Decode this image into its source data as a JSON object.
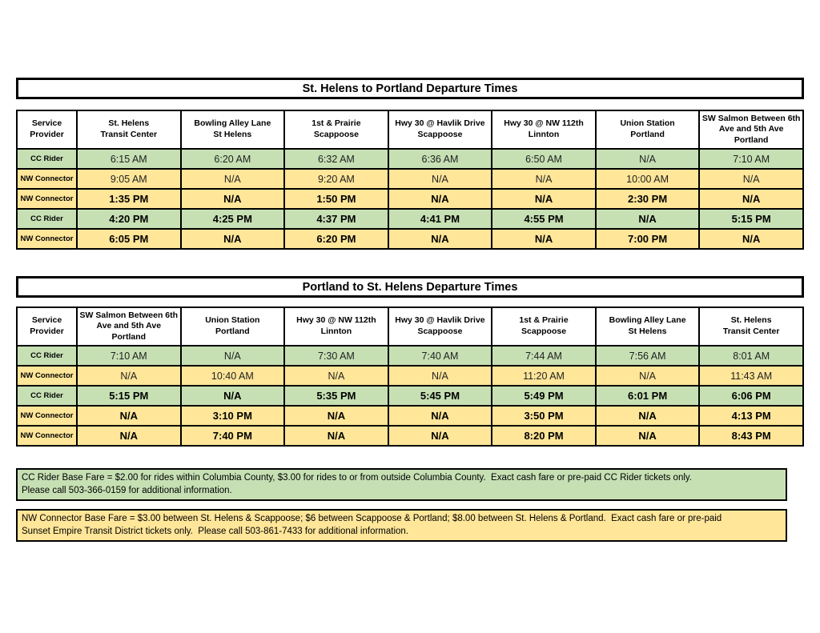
{
  "colors": {
    "cc_rider_row": "#c6e0b4",
    "nw_connector_row": "#ffe699",
    "border": "#000000",
    "background": "#ffffff"
  },
  "tables": [
    {
      "title": "St. Helens to Portland Departure Times",
      "headers": [
        [
          "Service",
          "Provider"
        ],
        [
          "St. Helens",
          "Transit Center"
        ],
        [
          "Bowling Alley Lane",
          "St Helens"
        ],
        [
          "1st & Prairie",
          "Scappoose"
        ],
        [
          "Hwy 30 @ Havlik Drive",
          "Scappoose"
        ],
        [
          "Hwy 30 @ NW 112th",
          "Linnton"
        ],
        [
          "Union Station",
          "Portland"
        ],
        [
          "SW Salmon Between 6th",
          "Ave and 5th Ave",
          "Portland"
        ]
      ],
      "rows": [
        {
          "provider": "CC Rider",
          "color": "green",
          "bold": false,
          "times": [
            "6:15 AM",
            "6:20 AM",
            "6:32 AM",
            "6:36 AM",
            "6:50 AM",
            "N/A",
            "7:10 AM"
          ]
        },
        {
          "provider": "NW Connector",
          "color": "yellow",
          "bold": false,
          "times": [
            "9:05 AM",
            "N/A",
            "9:20 AM",
            "N/A",
            "N/A",
            "10:00 AM",
            "N/A"
          ]
        },
        {
          "provider": "NW Connector",
          "color": "yellow",
          "bold": true,
          "times": [
            "1:35 PM",
            "N/A",
            "1:50 PM",
            "N/A",
            "N/A",
            "2:30 PM",
            "N/A"
          ]
        },
        {
          "provider": "CC Rider",
          "color": "green",
          "bold": true,
          "times": [
            "4:20 PM",
            "4:25 PM",
            "4:37 PM",
            "4:41 PM",
            "4:55 PM",
            "N/A",
            "5:15 PM"
          ]
        },
        {
          "provider": "NW Connector",
          "color": "yellow",
          "bold": true,
          "times": [
            "6:05 PM",
            "N/A",
            "6:20 PM",
            "N/A",
            "N/A",
            "7:00 PM",
            "N/A"
          ]
        }
      ]
    },
    {
      "title": "Portland to St. Helens Departure Times",
      "headers": [
        [
          "Service",
          "Provider"
        ],
        [
          "SW Salmon Between 6th",
          "Ave and 5th Ave",
          "Portland"
        ],
        [
          "Union Station",
          "Portland"
        ],
        [
          "Hwy 30 @ NW 112th",
          "Linnton"
        ],
        [
          "Hwy 30 @ Havlik Drive",
          "Scappoose"
        ],
        [
          "1st & Prairie",
          "Scappoose"
        ],
        [
          "Bowling Alley Lane",
          "St Helens"
        ],
        [
          "St. Helens",
          "Transit Center"
        ]
      ],
      "rows": [
        {
          "provider": "CC Rider",
          "color": "green",
          "bold": false,
          "times": [
            "7:10 AM",
            "N/A",
            "7:30 AM",
            "7:40 AM",
            "7:44 AM",
            "7:56 AM",
            "8:01 AM"
          ]
        },
        {
          "provider": "NW Connector",
          "color": "yellow",
          "bold": false,
          "times": [
            "N/A",
            "10:40 AM",
            "N/A",
            "N/A",
            "11:20 AM",
            "N/A",
            "11:43 AM"
          ]
        },
        {
          "provider": "CC Rider",
          "color": "green",
          "bold": true,
          "times": [
            "5:15 PM",
            "N/A",
            "5:35 PM",
            "5:45 PM",
            "5:49 PM",
            "6:01 PM",
            "6:06 PM"
          ]
        },
        {
          "provider": "NW Connector",
          "color": "yellow",
          "bold": true,
          "times": [
            "N/A",
            "3:10 PM",
            "N/A",
            "N/A",
            "3:50 PM",
            "N/A",
            "4:13 PM"
          ]
        },
        {
          "provider": "NW Connector",
          "color": "yellow",
          "bold": true,
          "times": [
            "N/A",
            "7:40 PM",
            "N/A",
            "N/A",
            "8:20 PM",
            "N/A",
            "8:43 PM"
          ]
        }
      ]
    }
  ],
  "notes": [
    {
      "id": "cc-rider-fare",
      "color": "green",
      "text": "CC Rider Base Fare = $2.00 for rides within Columbia County, $3.00 for rides to or from outside Columbia County.  Exact cash fare or pre-paid CC Rider tickets only.\nPlease call 503-366-0159 for additional information."
    },
    {
      "id": "nw-connector-fare",
      "color": "yellow",
      "text": "NW Connector Base Fare = $3.00 between St. Helens & Scappoose; $6 between Scappoose & Portland; $8.00 between St. Helens & Portland.  Exact cash fare or pre-paid\nSunset Empire Transit District tickets only.  Please call 503-861-7433 for additional information."
    }
  ]
}
